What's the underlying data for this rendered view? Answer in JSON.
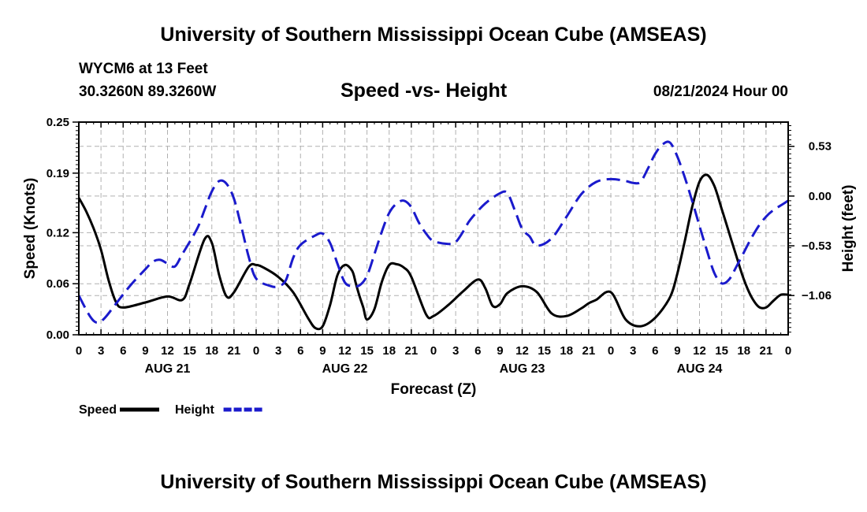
{
  "header": {
    "title": "University of Southern Mississippi Ocean Cube (AMSEAS)",
    "station": "WYCM6 at 13 Feet",
    "coordinates": "30.3260N  89.3260W",
    "subtitle": "Speed -vs- Height",
    "datetime": "08/21/2024 Hour 00"
  },
  "footer": {
    "title": "University of Southern Mississippi Ocean Cube (AMSEAS)"
  },
  "colors": {
    "speed": "#000000",
    "height": "#1a1acc",
    "grid": "#b0b0b0"
  },
  "chart_data": {
    "type": "line",
    "title": "Speed -vs- Height",
    "xlabel": "Forecast (Z)",
    "ylabel": "Speed (Knots)",
    "y2label": "Height (feet)",
    "xlim": [
      0,
      96
    ],
    "ylim": [
      0,
      0.25
    ],
    "y2lim": [
      -1.478,
      0.788
    ],
    "x_ticks": [
      0,
      3,
      6,
      9,
      12,
      15,
      18,
      21,
      24,
      27,
      30,
      33,
      36,
      39,
      42,
      45,
      48,
      51,
      54,
      57,
      60,
      63,
      66,
      69,
      72,
      75,
      78,
      81,
      84,
      87,
      90,
      93,
      96
    ],
    "x_tick_labels": [
      "0",
      "3",
      "6",
      "9",
      "12",
      "15",
      "18",
      "21",
      "0",
      "3",
      "6",
      "9",
      "12",
      "15",
      "18",
      "21",
      "0",
      "3",
      "6",
      "9",
      "12",
      "15",
      "18",
      "21",
      "0",
      "3",
      "6",
      "9",
      "12",
      "15",
      "18",
      "21",
      "0"
    ],
    "date_labels": [
      {
        "x": 12,
        "label": "AUG 21"
      },
      {
        "x": 36,
        "label": "AUG 22"
      },
      {
        "x": 60,
        "label": "AUG 23"
      },
      {
        "x": 84,
        "label": "AUG 24"
      }
    ],
    "y_ticks": [
      0.0,
      0.06,
      0.12,
      0.19,
      0.25
    ],
    "y_tick_labels": [
      "0.00",
      "0.06",
      "0.12",
      "0.19",
      "0.25"
    ],
    "y2_ticks": [
      0.53,
      0.0,
      -0.53,
      -1.06
    ],
    "y2_tick_labels": [
      "0.53",
      "0.00",
      "−0.53",
      "−1.06"
    ],
    "legend": [
      {
        "name": "Speed",
        "style": "solid"
      },
      {
        "name": "Height",
        "style": "dashed"
      }
    ],
    "series": [
      {
        "name": "Speed",
        "axis": "left",
        "style": "solid",
        "x": [
          0,
          1,
          2,
          3,
          4,
          5,
          6,
          9,
          12,
          14,
          15,
          17,
          18,
          19,
          20,
          21,
          23,
          24,
          25,
          27,
          29,
          31,
          32,
          33,
          34,
          35,
          36,
          37,
          37.5,
          38,
          38.5,
          39,
          40,
          41,
          42,
          43,
          44,
          45,
          47,
          48,
          50,
          52,
          54,
          55,
          56,
          57,
          58,
          60,
          62,
          64,
          66,
          68,
          69,
          70,
          72,
          74,
          76,
          78,
          80,
          81,
          82,
          83,
          84,
          85,
          86,
          87,
          88,
          89,
          90,
          91,
          92,
          93,
          94,
          95,
          96
        ],
        "y": [
          0.161,
          0.145,
          0.125,
          0.1,
          0.065,
          0.039,
          0.032,
          0.038,
          0.045,
          0.041,
          0.06,
          0.112,
          0.108,
          0.07,
          0.045,
          0.05,
          0.08,
          0.082,
          0.079,
          0.068,
          0.05,
          0.02,
          0.008,
          0.01,
          0.035,
          0.07,
          0.082,
          0.075,
          0.06,
          0.045,
          0.032,
          0.018,
          0.03,
          0.062,
          0.082,
          0.083,
          0.079,
          0.068,
          0.024,
          0.022,
          0.035,
          0.051,
          0.065,
          0.055,
          0.034,
          0.036,
          0.049,
          0.057,
          0.05,
          0.025,
          0.022,
          0.031,
          0.037,
          0.041,
          0.05,
          0.018,
          0.01,
          0.02,
          0.044,
          0.072,
          0.11,
          0.15,
          0.18,
          0.188,
          0.175,
          0.148,
          0.12,
          0.092,
          0.065,
          0.045,
          0.033,
          0.032,
          0.04,
          0.047,
          0.047
        ]
      },
      {
        "name": "Height",
        "axis": "right",
        "style": "dashed",
        "x": [
          0,
          1.5,
          2.5,
          3.5,
          5,
          7,
          9,
          10,
          11,
          12,
          13,
          14,
          16,
          17,
          18,
          19,
          20,
          21,
          22,
          23,
          24,
          26,
          27,
          28,
          29,
          30,
          32,
          33,
          34,
          35,
          36,
          37,
          38,
          39,
          40,
          41,
          42,
          43,
          44,
          45,
          46,
          47,
          48,
          50,
          51,
          52,
          53,
          55,
          57,
          58,
          59,
          60,
          61,
          62,
          64,
          66,
          68,
          70,
          72,
          74,
          75,
          76,
          77,
          78,
          79,
          80,
          81,
          82,
          83,
          84,
          85,
          86,
          87,
          88,
          89,
          90,
          91,
          92,
          93,
          94,
          95,
          96
        ],
        "y": [
          -1.06,
          -1.28,
          -1.35,
          -1.3,
          -1.15,
          -0.95,
          -0.78,
          -0.7,
          -0.68,
          -0.72,
          -0.75,
          -0.62,
          -0.35,
          -0.15,
          0.05,
          0.16,
          0.13,
          -0.03,
          -0.33,
          -0.65,
          -0.88,
          -0.96,
          -0.96,
          -0.9,
          -0.66,
          -0.52,
          -0.42,
          -0.4,
          -0.5,
          -0.72,
          -0.92,
          -0.96,
          -0.95,
          -0.85,
          -0.62,
          -0.38,
          -0.18,
          -0.08,
          -0.05,
          -0.12,
          -0.28,
          -0.4,
          -0.48,
          -0.51,
          -0.49,
          -0.38,
          -0.25,
          -0.08,
          0.03,
          0.03,
          -0.15,
          -0.35,
          -0.43,
          -0.53,
          -0.45,
          -0.22,
          0.02,
          0.15,
          0.18,
          0.16,
          0.14,
          0.15,
          0.29,
          0.45,
          0.55,
          0.57,
          0.42,
          0.2,
          -0.05,
          -0.32,
          -0.58,
          -0.82,
          -0.93,
          -0.89,
          -0.75,
          -0.6,
          -0.45,
          -0.32,
          -0.22,
          -0.15,
          -0.1,
          -0.05
        ]
      }
    ]
  }
}
